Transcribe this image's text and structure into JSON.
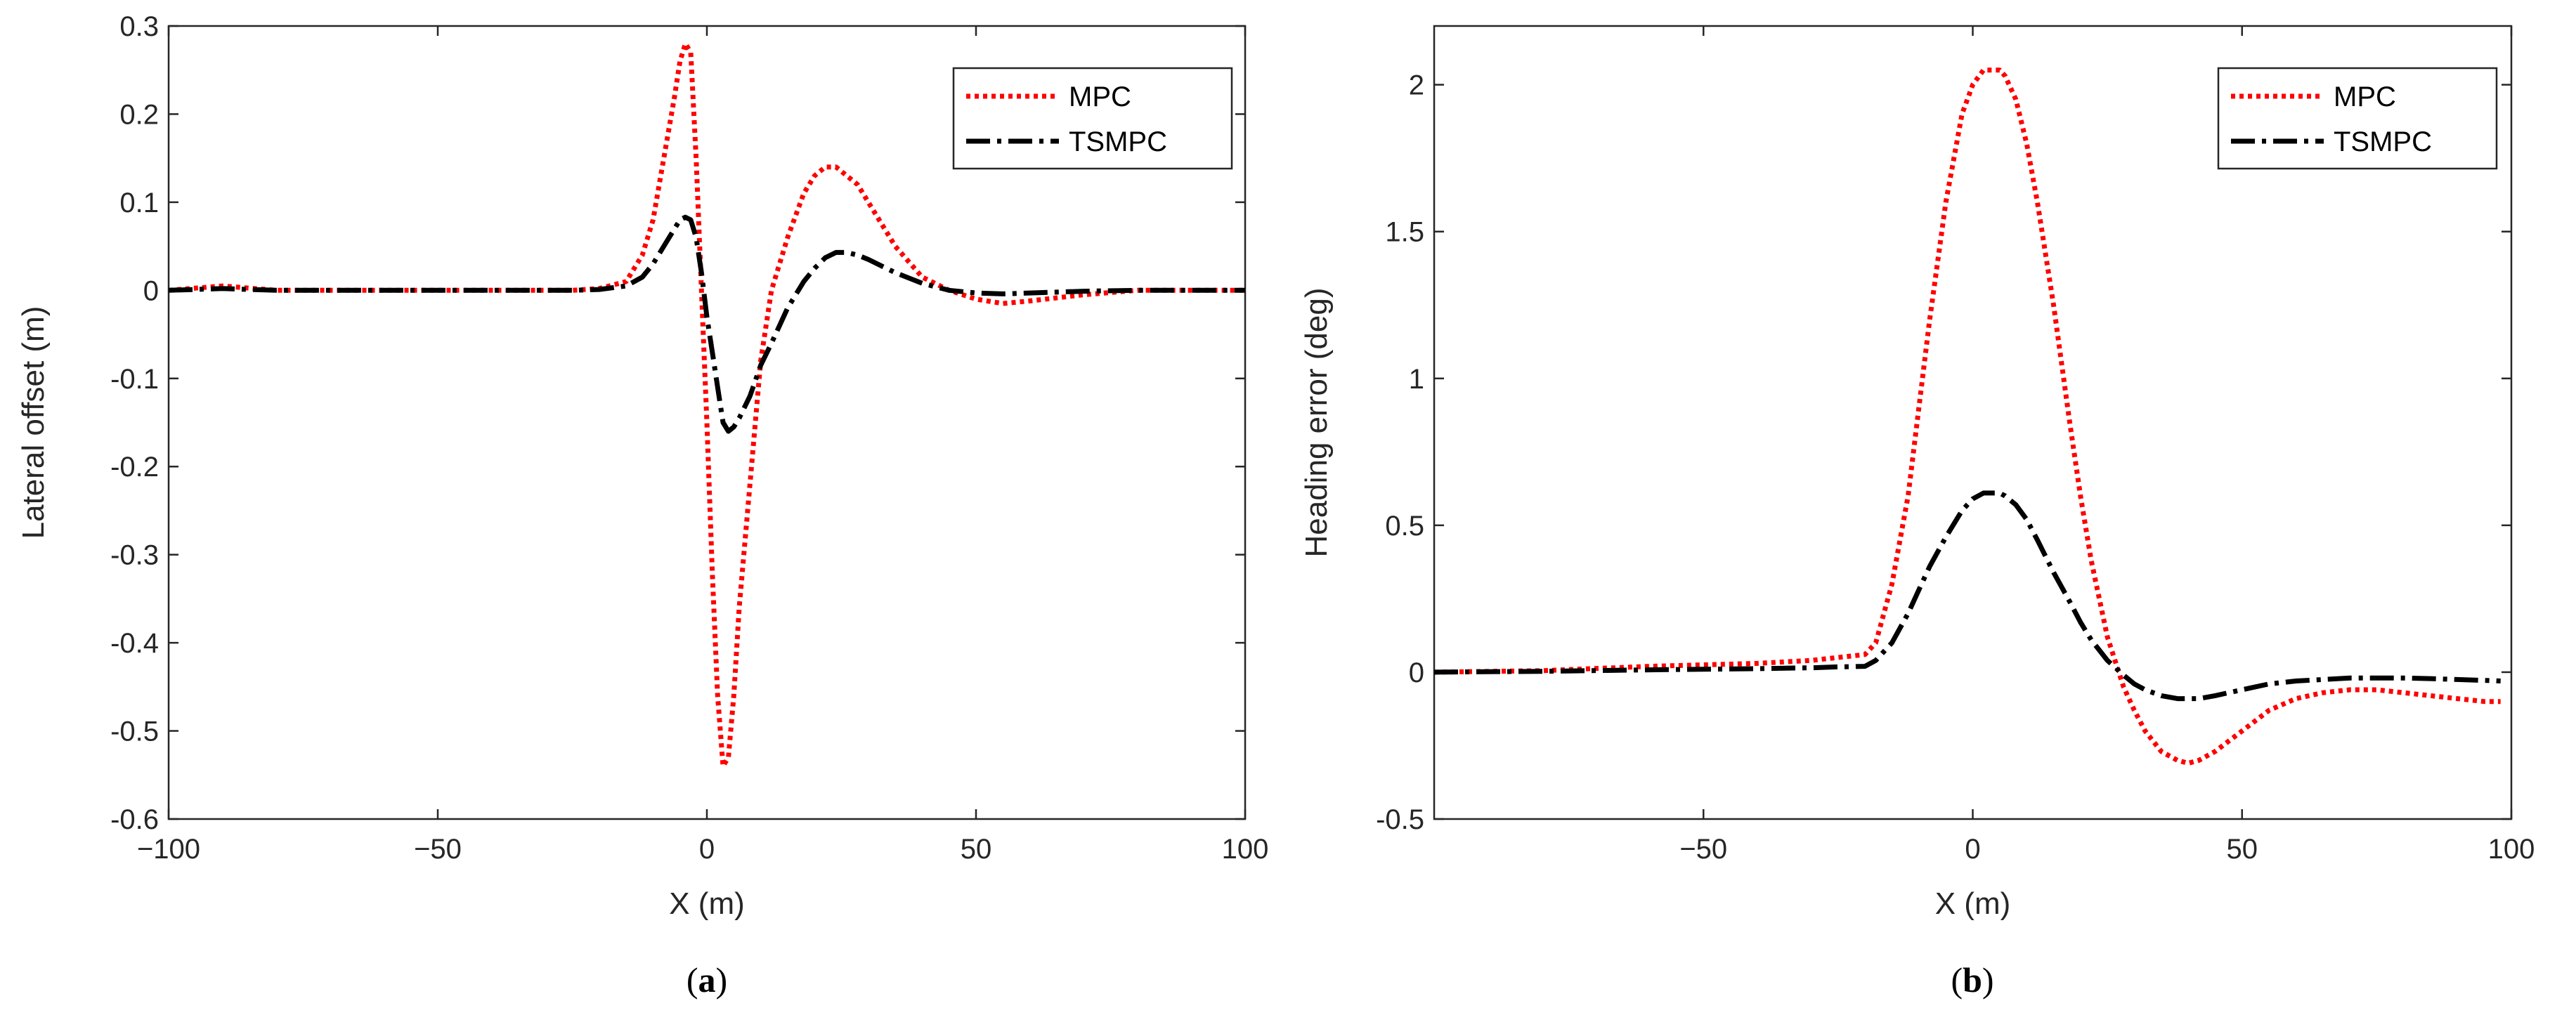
{
  "chart_data": [
    {
      "type": "line",
      "caption": "(a)",
      "caption_letter": "a",
      "xlabel": "X (m)",
      "ylabel": "Lateral offset (m)",
      "xlim": [
        -100,
        100
      ],
      "ylim": [
        -0.6,
        0.3
      ],
      "xticks": [
        -100,
        -50,
        0,
        50,
        100
      ],
      "yticks": [
        0.3,
        0.2,
        0.1,
        0,
        -0.1,
        -0.2,
        -0.3,
        -0.4,
        -0.5,
        -0.6
      ],
      "xtick_labels": [
        "−100",
        "−50",
        "0",
        "50",
        "100"
      ],
      "ytick_labels": [
        "0.3",
        "0.2",
        "0.1",
        "0",
        "-0.1",
        "-0.2",
        "-0.3",
        "-0.4",
        "-0.5",
        "-0.6"
      ],
      "grid": false,
      "legend_position": "top-right",
      "series": [
        {
          "name": "MPC",
          "color": "#ff0000",
          "style": "dotted",
          "x": [
            -100,
            -90,
            -80,
            -60,
            -40,
            -25,
            -20,
            -15,
            -12,
            -10,
            -8,
            -6,
            -5,
            -4,
            -3,
            -2,
            -1,
            0,
            1,
            2,
            3,
            4,
            5,
            6,
            8,
            10,
            12,
            15,
            18,
            20,
            22,
            24,
            26,
            28,
            30,
            35,
            40,
            45,
            50,
            55,
            60,
            70,
            80,
            90,
            100
          ],
          "y": [
            0,
            0.005,
            0,
            0,
            0,
            0,
            0.002,
            0.01,
            0.04,
            0.08,
            0.15,
            0.22,
            0.26,
            0.28,
            0.27,
            0.15,
            0,
            -0.15,
            -0.32,
            -0.46,
            -0.54,
            -0.53,
            -0.46,
            -0.36,
            -0.22,
            -0.08,
            0,
            0.06,
            0.11,
            0.13,
            0.14,
            0.14,
            0.13,
            0.12,
            0.1,
            0.05,
            0.015,
            0,
            -0.01,
            -0.015,
            -0.012,
            -0.005,
            0,
            0,
            0
          ]
        },
        {
          "name": "TSMPC",
          "color": "#000000",
          "style": "dashdot",
          "x": [
            -100,
            -90,
            -80,
            -60,
            -40,
            -25,
            -20,
            -15,
            -12,
            -10,
            -8,
            -6,
            -5,
            -4,
            -3,
            -2,
            -1,
            0,
            1,
            2,
            3,
            4,
            5,
            6,
            8,
            10,
            12,
            15,
            18,
            20,
            22,
            24,
            26,
            28,
            30,
            35,
            40,
            45,
            50,
            55,
            60,
            70,
            80,
            90,
            100
          ],
          "y": [
            0,
            0.002,
            0,
            0,
            0,
            0,
            0.001,
            0.005,
            0.015,
            0.03,
            0.05,
            0.07,
            0.08,
            0.083,
            0.08,
            0.06,
            0.02,
            -0.03,
            -0.07,
            -0.11,
            -0.15,
            -0.16,
            -0.155,
            -0.145,
            -0.12,
            -0.085,
            -0.06,
            -0.02,
            0.01,
            0.025,
            0.037,
            0.043,
            0.043,
            0.04,
            0.035,
            0.02,
            0.008,
            0,
            -0.003,
            -0.004,
            -0.003,
            -0.001,
            0,
            0,
            0
          ]
        }
      ]
    },
    {
      "type": "line",
      "caption": "(b)",
      "caption_letter": "b",
      "xlabel": "X (m)",
      "ylabel": "Heading error (deg)",
      "xlim": [
        -100,
        100
      ],
      "ylim": [
        -0.5,
        2.2
      ],
      "xticks": [
        -50,
        0,
        50,
        100
      ],
      "yticks": [
        2,
        1.5,
        1,
        0.5,
        0,
        -0.5
      ],
      "xtick_labels": [
        "−50",
        "0",
        "50",
        "100"
      ],
      "ytick_labels": [
        "2",
        "1.5",
        "1",
        "0.5",
        "0",
        "-0.5"
      ],
      "grid": false,
      "legend_position": "top-right",
      "series": [
        {
          "name": "MPC",
          "color": "#ff0000",
          "style": "dotted",
          "x": [
            -100,
            -80,
            -60,
            -40,
            -30,
            -25,
            -20,
            -18,
            -15,
            -12,
            -10,
            -8,
            -5,
            -2,
            0,
            2,
            4,
            5,
            6,
            8,
            10,
            12,
            15,
            18,
            20,
            22,
            25,
            28,
            30,
            32,
            35,
            38,
            40,
            42,
            45,
            50,
            55,
            60,
            65,
            70,
            75,
            80,
            85,
            90,
            95,
            98
          ],
          "y": [
            0,
            0.005,
            0.02,
            0.03,
            0.04,
            0.05,
            0.06,
            0.1,
            0.3,
            0.6,
            0.9,
            1.2,
            1.6,
            1.9,
            2.0,
            2.05,
            2.05,
            2.05,
            2.03,
            1.95,
            1.8,
            1.6,
            1.25,
            0.85,
            0.6,
            0.38,
            0.12,
            -0.05,
            -0.13,
            -0.2,
            -0.27,
            -0.3,
            -0.31,
            -0.3,
            -0.27,
            -0.2,
            -0.13,
            -0.09,
            -0.07,
            -0.06,
            -0.06,
            -0.07,
            -0.08,
            -0.09,
            -0.1,
            -0.1
          ]
        },
        {
          "name": "TSMPC",
          "color": "#000000",
          "style": "dashdot",
          "x": [
            -100,
            -80,
            -60,
            -40,
            -30,
            -25,
            -20,
            -18,
            -15,
            -12,
            -10,
            -8,
            -5,
            -2,
            0,
            2,
            4,
            5,
            6,
            8,
            10,
            12,
            15,
            18,
            20,
            22,
            25,
            28,
            30,
            32,
            35,
            38,
            40,
            42,
            45,
            50,
            55,
            60,
            65,
            70,
            75,
            80,
            85,
            90,
            95,
            98
          ],
          "y": [
            0,
            0.003,
            0.008,
            0.012,
            0.015,
            0.018,
            0.02,
            0.04,
            0.1,
            0.2,
            0.28,
            0.36,
            0.46,
            0.55,
            0.59,
            0.61,
            0.61,
            0.61,
            0.6,
            0.57,
            0.52,
            0.45,
            0.34,
            0.24,
            0.17,
            0.11,
            0.04,
            -0.01,
            -0.04,
            -0.06,
            -0.08,
            -0.09,
            -0.09,
            -0.09,
            -0.08,
            -0.06,
            -0.04,
            -0.03,
            -0.025,
            -0.02,
            -0.02,
            -0.02,
            -0.022,
            -0.025,
            -0.028,
            -0.03
          ]
        }
      ]
    }
  ]
}
